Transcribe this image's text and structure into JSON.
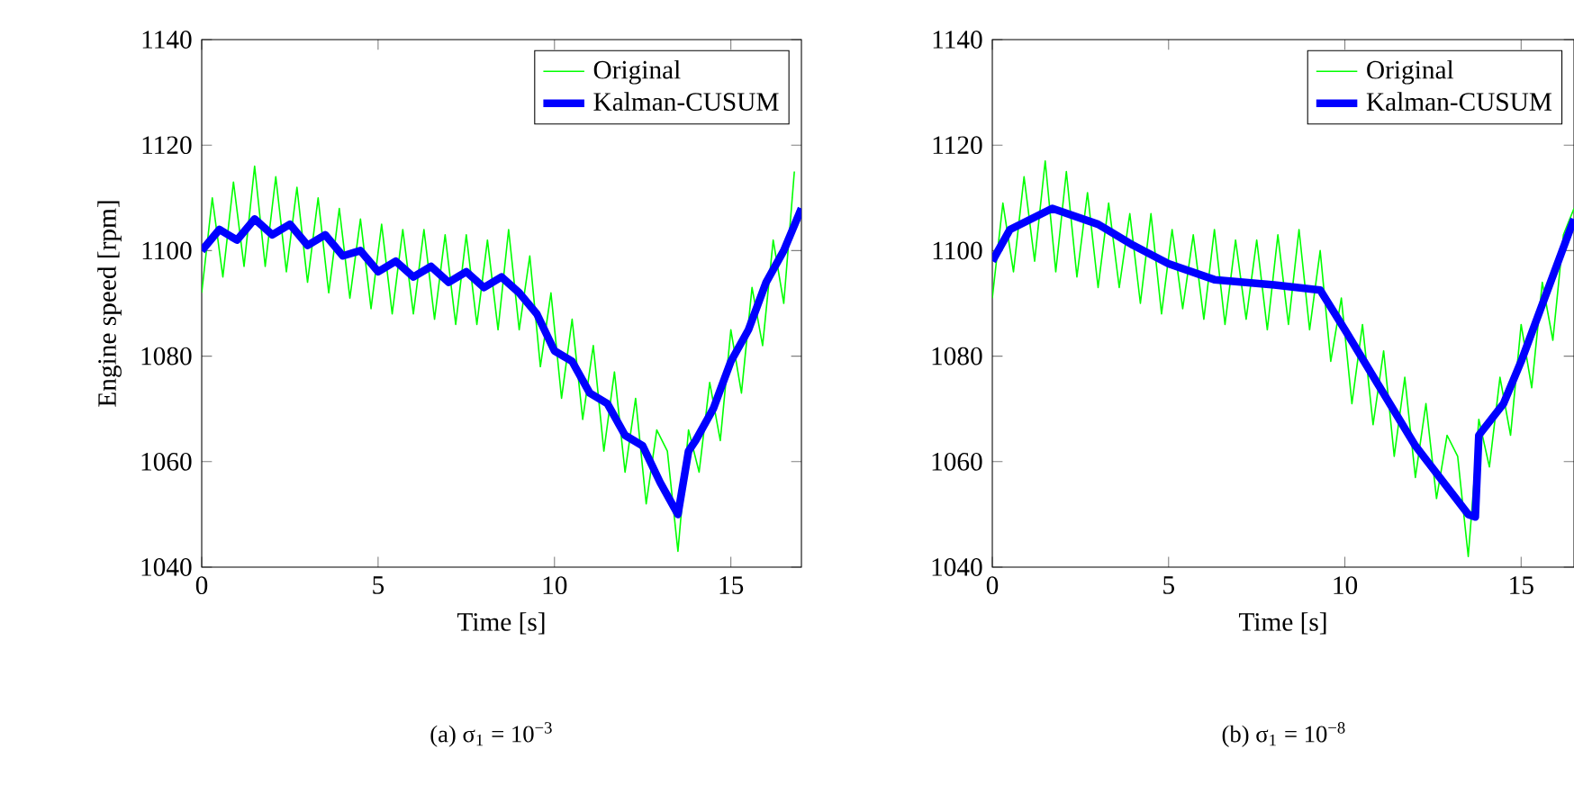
{
  "chart_data": [
    {
      "type": "line",
      "xlabel": "Time [s]",
      "ylabel": "Engine speed [rpm]",
      "xlim": [
        0,
        17
      ],
      "ylim": [
        1040,
        1140
      ],
      "xticks": [
        0,
        5,
        10,
        15
      ],
      "yticks": [
        1040,
        1060,
        1080,
        1100,
        1120,
        1140
      ],
      "legend": "top right",
      "line_style": "solid",
      "annotations": [
        "(a) σ$_{1}$ = 10$^{−3}$"
      ],
      "series": [
        {
          "name": "Original",
          "color": "#00ff00",
          "x": [
            0,
            0.3,
            0.6,
            0.9,
            1.2,
            1.5,
            1.8,
            2.1,
            2.4,
            2.7,
            3.0,
            3.3,
            3.6,
            3.9,
            4.2,
            4.5,
            4.8,
            5.1,
            5.4,
            5.7,
            6.0,
            6.3,
            6.6,
            6.9,
            7.2,
            7.5,
            7.8,
            8.1,
            8.4,
            8.7,
            9.0,
            9.3,
            9.6,
            9.9,
            10.2,
            10.5,
            10.8,
            11.1,
            11.4,
            11.7,
            12.0,
            12.3,
            12.6,
            12.9,
            13.2,
            13.5,
            13.8,
            14.1,
            14.4,
            14.7,
            15.0,
            15.3,
            15.6,
            15.9,
            16.2,
            16.5,
            16.8
          ],
          "values": [
            1092,
            1110,
            1095,
            1113,
            1097,
            1116,
            1097,
            1114,
            1096,
            1112,
            1094,
            1110,
            1092,
            1108,
            1091,
            1106,
            1089,
            1105,
            1088,
            1104,
            1088,
            1104,
            1087,
            1103,
            1086,
            1103,
            1086,
            1102,
            1085,
            1104,
            1085,
            1099,
            1078,
            1092,
            1072,
            1087,
            1068,
            1082,
            1062,
            1077,
            1058,
            1072,
            1052,
            1066,
            1062,
            1043,
            1066,
            1058,
            1075,
            1064,
            1085,
            1073,
            1093,
            1082,
            1102,
            1090,
            1115
          ]
        },
        {
          "name": "Kalman-CUSUM",
          "color": "#0000ff",
          "x": [
            0,
            0.5,
            1,
            1.5,
            2,
            2.5,
            3,
            3.5,
            4,
            4.5,
            5,
            5.5,
            6,
            6.5,
            7,
            7.5,
            8,
            8.5,
            9,
            9.5,
            10,
            10.5,
            11,
            11.5,
            12,
            12.5,
            13,
            13.5,
            13.8,
            14,
            14.5,
            15,
            15.5,
            16,
            16.5,
            17
          ],
          "values": [
            1100,
            1104,
            1102,
            1106,
            1103,
            1105,
            1101,
            1103,
            1099,
            1100,
            1096,
            1098,
            1095,
            1097,
            1094,
            1096,
            1093,
            1095,
            1092,
            1088,
            1081,
            1079,
            1073,
            1071,
            1065,
            1063,
            1056,
            1050,
            1062,
            1064,
            1070,
            1079,
            1085,
            1094,
            1100,
            1108
          ]
        }
      ]
    },
    {
      "type": "line",
      "xlabel": "Time [s]",
      "xlim": [
        0,
        16.5
      ],
      "ylim": [
        1040,
        1140
      ],
      "xticks": [
        0,
        5,
        10,
        15
      ],
      "yticks": [
        1040,
        1060,
        1080,
        1100,
        1120,
        1140
      ],
      "legend": "top right",
      "line_style": "solid",
      "annotations": [
        "(b) σ$_{1}$ = 10$^{−8}$"
      ],
      "series": [
        {
          "name": "Original",
          "color": "#00ff00",
          "x": [
            0,
            0.3,
            0.6,
            0.9,
            1.2,
            1.5,
            1.8,
            2.1,
            2.4,
            2.7,
            3.0,
            3.3,
            3.6,
            3.9,
            4.2,
            4.5,
            4.8,
            5.1,
            5.4,
            5.7,
            6.0,
            6.3,
            6.6,
            6.9,
            7.2,
            7.5,
            7.8,
            8.1,
            8.4,
            8.7,
            9.0,
            9.3,
            9.6,
            9.9,
            10.2,
            10.5,
            10.8,
            11.1,
            11.4,
            11.7,
            12.0,
            12.3,
            12.6,
            12.9,
            13.2,
            13.5,
            13.8,
            14.1,
            14.4,
            14.7,
            15.0,
            15.3,
            15.6,
            15.9,
            16.2,
            16.5
          ],
          "values": [
            1091,
            1109,
            1096,
            1114,
            1098,
            1117,
            1096,
            1115,
            1095,
            1111,
            1093,
            1109,
            1093,
            1107,
            1090,
            1107,
            1088,
            1104,
            1089,
            1103,
            1087,
            1104,
            1086,
            1102,
            1087,
            1102,
            1085,
            1103,
            1086,
            1104,
            1085,
            1100,
            1079,
            1091,
            1071,
            1086,
            1067,
            1081,
            1061,
            1076,
            1057,
            1071,
            1053,
            1065,
            1061,
            1042,
            1068,
            1059,
            1076,
            1065,
            1086,
            1074,
            1094,
            1083,
            1103,
            1108
          ]
        },
        {
          "name": "Kalman-CUSUM",
          "color": "#0000ff",
          "x": [
            0,
            0.5,
            1.7,
            3,
            4,
            5,
            6.3,
            8,
            9.3,
            10,
            11,
            12,
            13.5,
            13.7,
            13.8,
            14.5,
            15,
            16.5
          ],
          "values": [
            1098,
            1104,
            1108,
            1105,
            1101,
            1097.5,
            1094.5,
            1093.5,
            1092.5,
            1085,
            1074,
            1063,
            1050,
            1049.5,
            1065,
            1071,
            1079,
            1106
          ]
        }
      ]
    }
  ]
}
